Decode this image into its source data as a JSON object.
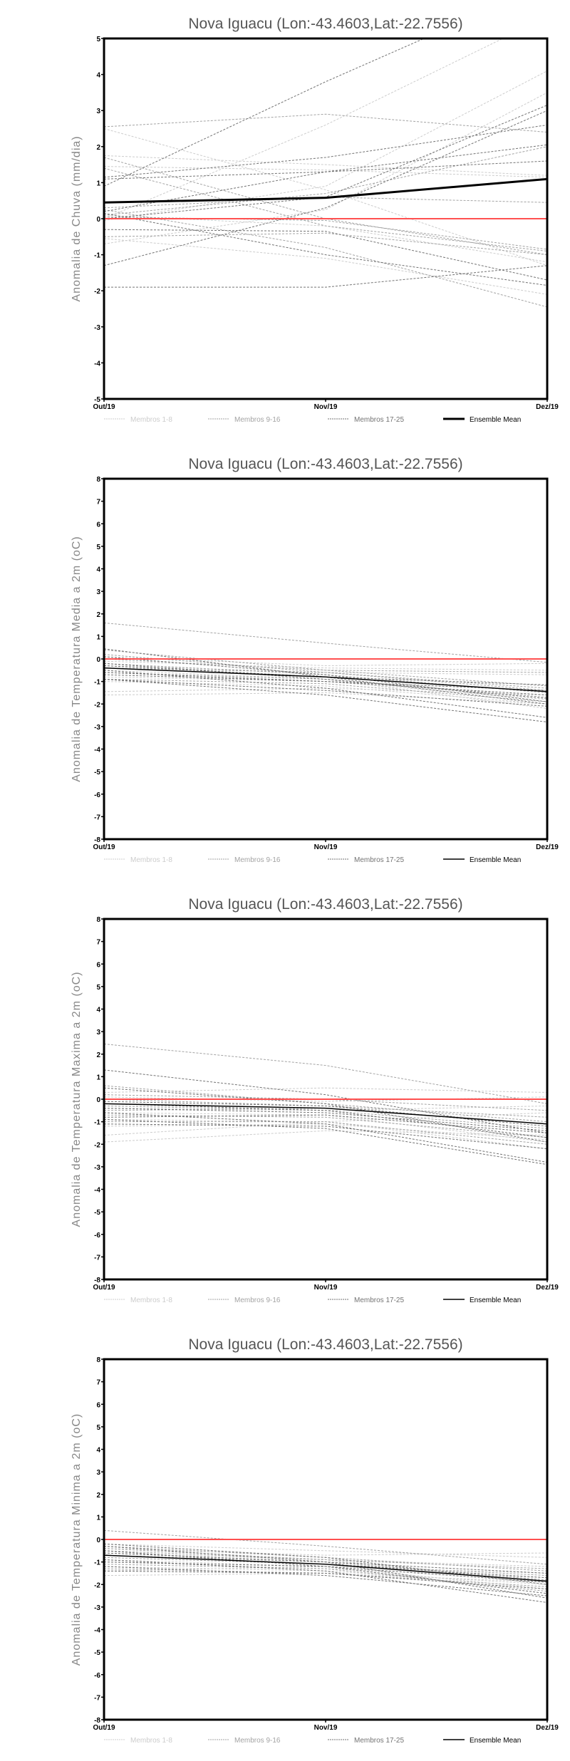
{
  "colors": {
    "g1": "#cccccc",
    "g2": "#a3a3a3",
    "g3": "#737373",
    "mean": "#000000",
    "zero": "#ff5050"
  },
  "chart_data": [
    {
      "type": "line",
      "title": "Nova Iguacu (Lon:-43.4603,Lat:-22.7556)",
      "ylabel": "Anomalia de Chuva (mm/dia)",
      "xlabel": "",
      "categories": [
        "Out/19",
        "Nov/19",
        "Dez/19"
      ],
      "ylim": [
        -5,
        5
      ],
      "yticks": [
        -5,
        -4,
        -3,
        -2,
        -1,
        0,
        1,
        2,
        3,
        4,
        5
      ],
      "grid": false,
      "legend_position": "bottom",
      "legend": [
        "Membros 1-8",
        "Membros 9-16",
        "Membros 17-25",
        "Ensemble Mean"
      ],
      "mean_width": 3,
      "members": [
        [
          2.5,
          0.8,
          -1.3
        ],
        [
          1.75,
          1.5,
          1.2
        ],
        [
          1.45,
          1.35,
          1.15
        ],
        [
          0.0,
          2.6,
          5.6
        ],
        [
          -0.05,
          0.9,
          4.1
        ],
        [
          -0.7,
          0.25,
          3.5
        ],
        [
          -0.55,
          -1.1,
          -2.1
        ],
        [
          0.1,
          -0.2,
          -1.2
        ],
        [
          2.55,
          2.9,
          2.4
        ],
        [
          1.7,
          0.0,
          -1.0
        ],
        [
          1.4,
          -0.2,
          -0.9
        ],
        [
          0.3,
          0.6,
          0.45
        ],
        [
          0.1,
          0.7,
          2.0
        ],
        [
          -0.5,
          -0.4,
          -1.0
        ],
        [
          0.25,
          -0.8,
          -2.45
        ],
        [
          0.05,
          -0.05,
          -0.85
        ],
        [
          0.9,
          3.8,
          6.5
        ],
        [
          1.15,
          1.7,
          2.6
        ],
        [
          1.1,
          1.3,
          1.6
        ],
        [
          0.2,
          1.3,
          2.05
        ],
        [
          0.0,
          0.6,
          3.15
        ],
        [
          -0.3,
          -0.35,
          -1.7
        ],
        [
          -1.3,
          0.3,
          3.0
        ],
        [
          -1.9,
          -1.9,
          -1.3
        ],
        [
          0.15,
          -1.0,
          -1.85
        ]
      ],
      "mean": [
        0.45,
        0.58,
        1.1
      ]
    },
    {
      "type": "line",
      "title": "Nova Iguacu (Lon:-43.4603,Lat:-22.7556)",
      "ylabel": "Anomalia de Temperatura Media a 2m (oC)",
      "xlabel": "",
      "categories": [
        "Out/19",
        "Nov/19",
        "Dez/19"
      ],
      "ylim": [
        -8,
        8
      ],
      "yticks": [
        -8,
        -7,
        -6,
        -5,
        -4,
        -3,
        -2,
        -1,
        0,
        1,
        2,
        3,
        4,
        5,
        6,
        7,
        8
      ],
      "grid": false,
      "legend_position": "bottom",
      "legend": [
        "Membros 1-8",
        "Membros 9-16",
        "Membros 17-25",
        "Ensemble Mean"
      ],
      "mean_width": 1.5,
      "members": [
        [
          -1.6,
          -1.5,
          -2.0
        ],
        [
          -1.45,
          -1.3,
          -1.6
        ],
        [
          -0.1,
          -0.4,
          -0.5
        ],
        [
          -0.5,
          -0.9,
          -2.2
        ],
        [
          0.1,
          -0.3,
          -0.2
        ],
        [
          -0.8,
          -1.0,
          -1.8
        ],
        [
          -0.3,
          -0.6,
          -0.7
        ],
        [
          -1.0,
          -1.2,
          -2.0
        ],
        [
          1.6,
          0.7,
          -0.15
        ],
        [
          0.4,
          -0.5,
          -1.2
        ],
        [
          -0.2,
          -0.7,
          -1.5
        ],
        [
          -0.6,
          -0.9,
          -1.7
        ],
        [
          0.0,
          -0.5,
          -0.6
        ],
        [
          -0.9,
          -1.1,
          -1.9
        ],
        [
          -0.4,
          -0.6,
          -1.3
        ],
        [
          0.2,
          -0.6,
          -1.4
        ],
        [
          0.45,
          -0.8,
          -2.0
        ],
        [
          -0.5,
          -1.3,
          -2.6
        ],
        [
          -0.9,
          -1.6,
          -2.8
        ],
        [
          -0.3,
          -0.8,
          -1.15
        ],
        [
          -0.7,
          -1.0,
          -1.6
        ],
        [
          0.1,
          -0.7,
          -1.9
        ],
        [
          -0.9,
          -1.4,
          -2.1
        ],
        [
          -0.6,
          -1.0,
          -1.4
        ],
        [
          -0.2,
          -0.9,
          -1.75
        ]
      ],
      "mean": [
        -0.4,
        -0.8,
        -1.45
      ]
    },
    {
      "type": "line",
      "title": "Nova Iguacu (Lon:-43.4603,Lat:-22.7556)",
      "ylabel": "Anomalia de Temperatura Maxima a 2m (oC)",
      "xlabel": "",
      "categories": [
        "Out/19",
        "Nov/19",
        "Dez/19"
      ],
      "ylim": [
        -8,
        8
      ],
      "yticks": [
        -8,
        -7,
        -6,
        -5,
        -4,
        -3,
        -2,
        -1,
        0,
        1,
        2,
        3,
        4,
        5,
        6,
        7,
        8
      ],
      "grid": false,
      "legend_position": "bottom",
      "legend": [
        "Membros 1-8",
        "Membros 9-16",
        "Membros 17-25",
        "Ensemble Mean"
      ],
      "mean_width": 1.5,
      "members": [
        [
          -1.9,
          -1.4,
          -1.6
        ],
        [
          -1.6,
          -1.0,
          -0.6
        ],
        [
          0.3,
          0.5,
          0.3
        ],
        [
          -0.6,
          -0.7,
          -1.9
        ],
        [
          0.1,
          -0.1,
          0.1
        ],
        [
          -0.9,
          -1.0,
          -2.2
        ],
        [
          -0.4,
          -0.5,
          -0.3
        ],
        [
          -1.2,
          -1.1,
          -1.8
        ],
        [
          2.45,
          1.5,
          -0.2
        ],
        [
          0.6,
          -0.2,
          -1.0
        ],
        [
          -0.3,
          -0.5,
          -1.3
        ],
        [
          -0.7,
          -0.8,
          -1.7
        ],
        [
          0.2,
          0.0,
          -0.5
        ],
        [
          -1.0,
          -1.0,
          -2.0
        ],
        [
          -0.5,
          -0.4,
          -1.1
        ],
        [
          0.0,
          -0.3,
          -0.8
        ],
        [
          1.3,
          0.2,
          -1.5
        ],
        [
          -0.6,
          -1.1,
          -2.8
        ],
        [
          -0.9,
          -1.3,
          -2.9
        ],
        [
          -0.1,
          -0.3,
          -1.2
        ],
        [
          -0.8,
          -0.7,
          -1.5
        ],
        [
          0.5,
          -0.2,
          -1.9
        ],
        [
          -1.1,
          -1.2,
          -2.2
        ],
        [
          -0.4,
          -0.6,
          -1.4
        ],
        [
          -0.2,
          -0.5,
          -1.7
        ]
      ],
      "mean": [
        -0.2,
        -0.4,
        -1.1
      ]
    },
    {
      "type": "line",
      "title": "Nova Iguacu (Lon:-43.4603,Lat:-22.7556)",
      "ylabel": "Anomalia de Temperatura Minima a 2m (oC)",
      "xlabel": "",
      "categories": [
        "Out/19",
        "Nov/19",
        "Dez/19"
      ],
      "ylim": [
        -8,
        8
      ],
      "yticks": [
        -8,
        -7,
        -6,
        -5,
        -4,
        -3,
        -2,
        -1,
        0,
        1,
        2,
        3,
        4,
        5,
        6,
        7,
        8
      ],
      "grid": false,
      "legend_position": "bottom",
      "legend": [
        "Membros 1-8",
        "Membros 9-16",
        "Membros 17-25",
        "Ensemble Mean"
      ],
      "mean_width": 1.5,
      "members": [
        [
          -1.6,
          -1.5,
          -1.9
        ],
        [
          -1.4,
          -1.2,
          -1.5
        ],
        [
          -0.4,
          -0.7,
          -0.6
        ],
        [
          -0.9,
          -1.2,
          -2.2
        ],
        [
          -0.2,
          -0.5,
          -0.8
        ],
        [
          -1.2,
          -1.4,
          -2.0
        ],
        [
          -0.6,
          -0.9,
          -1.2
        ],
        [
          -1.0,
          -1.3,
          -1.7
        ],
        [
          0.4,
          -0.3,
          -1.1
        ],
        [
          -0.3,
          -0.8,
          -1.4
        ],
        [
          -0.7,
          -1.0,
          -1.8
        ],
        [
          -1.1,
          -1.3,
          -2.3
        ],
        [
          -0.5,
          -0.9,
          -1.3
        ],
        [
          -1.3,
          -1.5,
          -2.1
        ],
        [
          -0.8,
          -1.1,
          -1.6
        ],
        [
          -0.4,
          -0.9,
          -1.9
        ],
        [
          -0.3,
          -1.0,
          -2.6
        ],
        [
          -0.9,
          -1.4,
          -2.8
        ],
        [
          -1.2,
          -1.6,
          -2.5
        ],
        [
          -0.6,
          -1.0,
          -1.5
        ],
        [
          -1.0,
          -1.2,
          -1.9
        ],
        [
          -0.2,
          -0.8,
          -2.0
        ],
        [
          -1.4,
          -1.5,
          -2.2
        ],
        [
          -0.7,
          -1.1,
          -1.7
        ],
        [
          -0.5,
          -1.2,
          -2.4
        ]
      ],
      "mean": [
        -0.7,
        -1.1,
        -1.85
      ]
    }
  ]
}
